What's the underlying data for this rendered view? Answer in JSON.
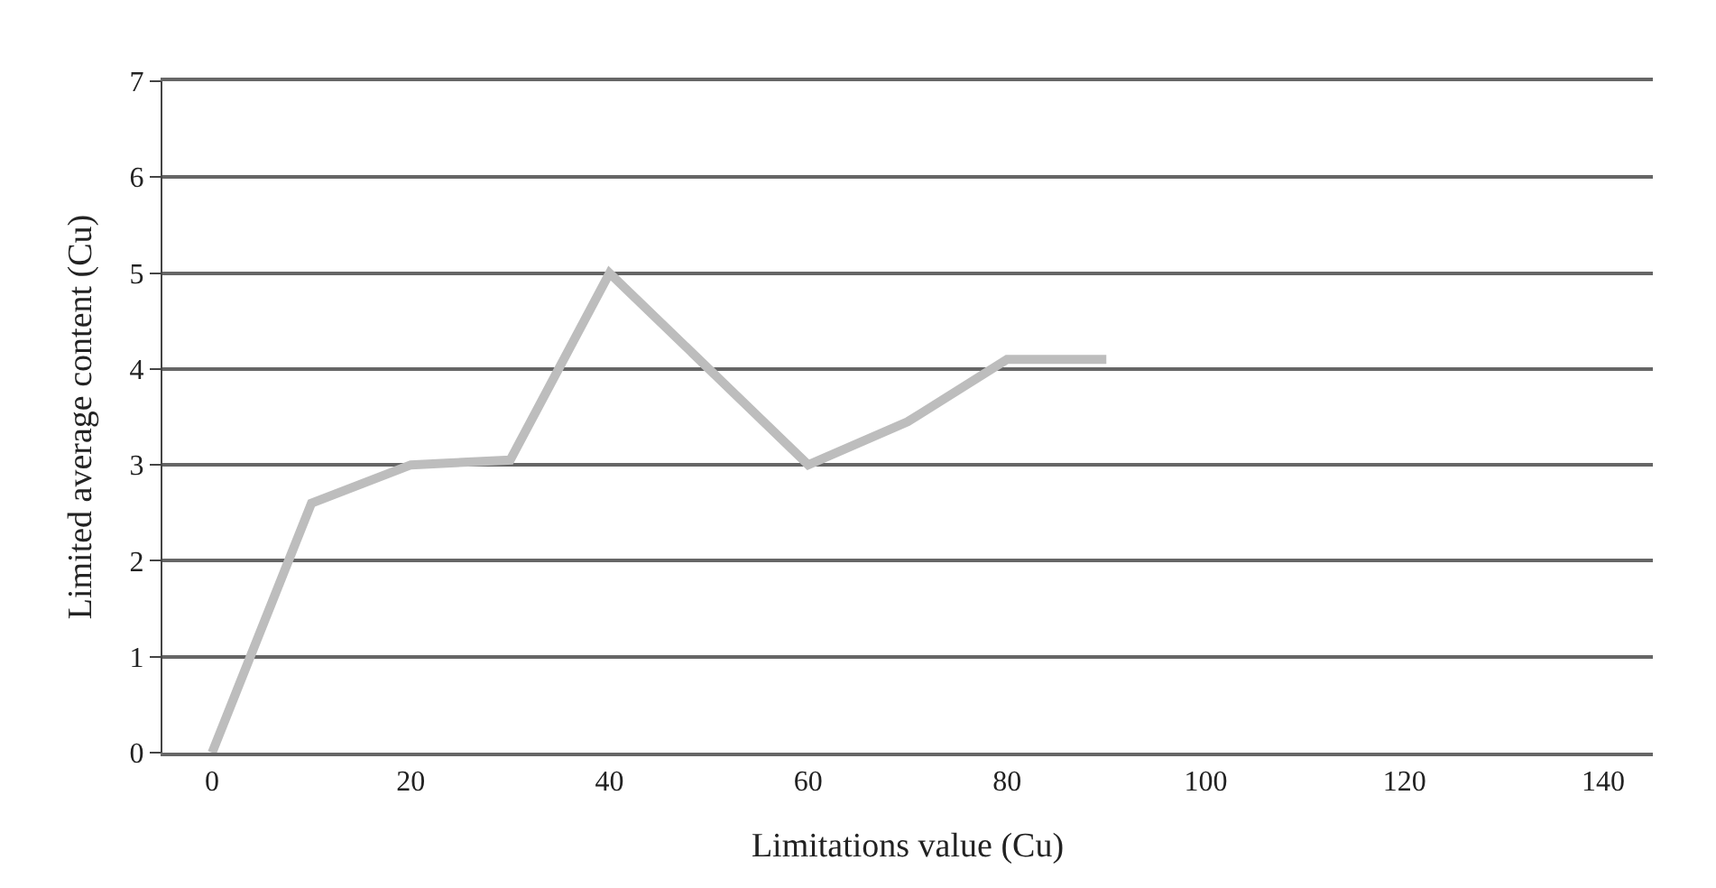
{
  "chart_data": {
    "type": "line",
    "xlabel": "Limitations value (Cu)",
    "ylabel": "Limited average content (Cu)",
    "x": [
      0,
      10,
      20,
      30,
      40,
      50,
      60,
      70,
      80,
      90
    ],
    "series": [
      {
        "color": "#bdbdbd",
        "values": [
          0,
          2.6,
          3.0,
          3.05,
          5.0,
          4.0,
          3.0,
          3.45,
          4.1,
          4.1
        ]
      }
    ],
    "xlim": [
      -5,
      145
    ],
    "xticks": [
      0,
      20,
      40,
      60,
      80,
      100,
      120,
      140
    ],
    "ylim": [
      0,
      7
    ],
    "yticks": [
      0,
      1,
      2,
      3,
      4,
      5,
      6,
      7
    ],
    "grid": "y",
    "marker": "none",
    "line_style": "solid"
  }
}
